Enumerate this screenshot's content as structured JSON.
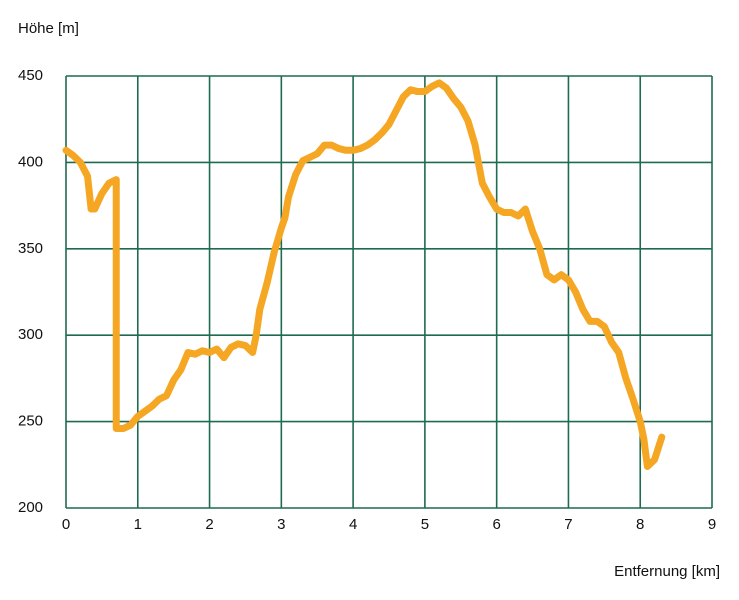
{
  "chart_data": {
    "type": "line",
    "y_label": "Höhe [m]",
    "x_label": "Entfernung [km]",
    "xlim": [
      0,
      9
    ],
    "ylim": [
      200,
      450
    ],
    "xticks": [
      0,
      1,
      2,
      3,
      4,
      5,
      6,
      7,
      8,
      9
    ],
    "yticks": [
      200,
      250,
      300,
      350,
      400,
      450
    ],
    "grid": true,
    "x": [
      0,
      0.1,
      0.2,
      0.3,
      0.35,
      0.4,
      0.5,
      0.6,
      0.7,
      0.7,
      0.8,
      0.9,
      1.0,
      1.1,
      1.2,
      1.3,
      1.4,
      1.5,
      1.6,
      1.7,
      1.8,
      1.9,
      2.0,
      2.1,
      2.2,
      2.3,
      2.4,
      2.5,
      2.6,
      2.65,
      2.7,
      2.8,
      2.9,
      3.0,
      3.05,
      3.1,
      3.2,
      3.3,
      3.4,
      3.5,
      3.6,
      3.7,
      3.8,
      3.9,
      4.0,
      4.1,
      4.2,
      4.3,
      4.4,
      4.5,
      4.6,
      4.7,
      4.8,
      4.9,
      5.0,
      5.1,
      5.2,
      5.3,
      5.4,
      5.5,
      5.6,
      5.7,
      5.8,
      5.9,
      6.0,
      6.1,
      6.2,
      6.3,
      6.4,
      6.5,
      6.6,
      6.7,
      6.8,
      6.9,
      7.0,
      7.1,
      7.2,
      7.3,
      7.4,
      7.5,
      7.6,
      7.7,
      7.8,
      7.9,
      8.0,
      8.05,
      8.1,
      8.2,
      8.3
    ],
    "series": [
      {
        "color": "#f5a623",
        "values": [
          407,
          404,
          400,
          392,
          373,
          373,
          382,
          388,
          390,
          246,
          246,
          248,
          253,
          256,
          259,
          263,
          265,
          274,
          280,
          290,
          289,
          291,
          290,
          292,
          287,
          293,
          295,
          294,
          290,
          300,
          315,
          330,
          348,
          362,
          368,
          380,
          393,
          401,
          403,
          405,
          410,
          410,
          408,
          407,
          407,
          408,
          410,
          413,
          417,
          422,
          430,
          438,
          442,
          441,
          441,
          444,
          446,
          443,
          437,
          432,
          424,
          410,
          388,
          380,
          373,
          371,
          371,
          369,
          373,
          360,
          350,
          335,
          332,
          335,
          332,
          325,
          315,
          308,
          308,
          305,
          296,
          290,
          275,
          263,
          250,
          240,
          224,
          228,
          241
        ]
      }
    ]
  }
}
